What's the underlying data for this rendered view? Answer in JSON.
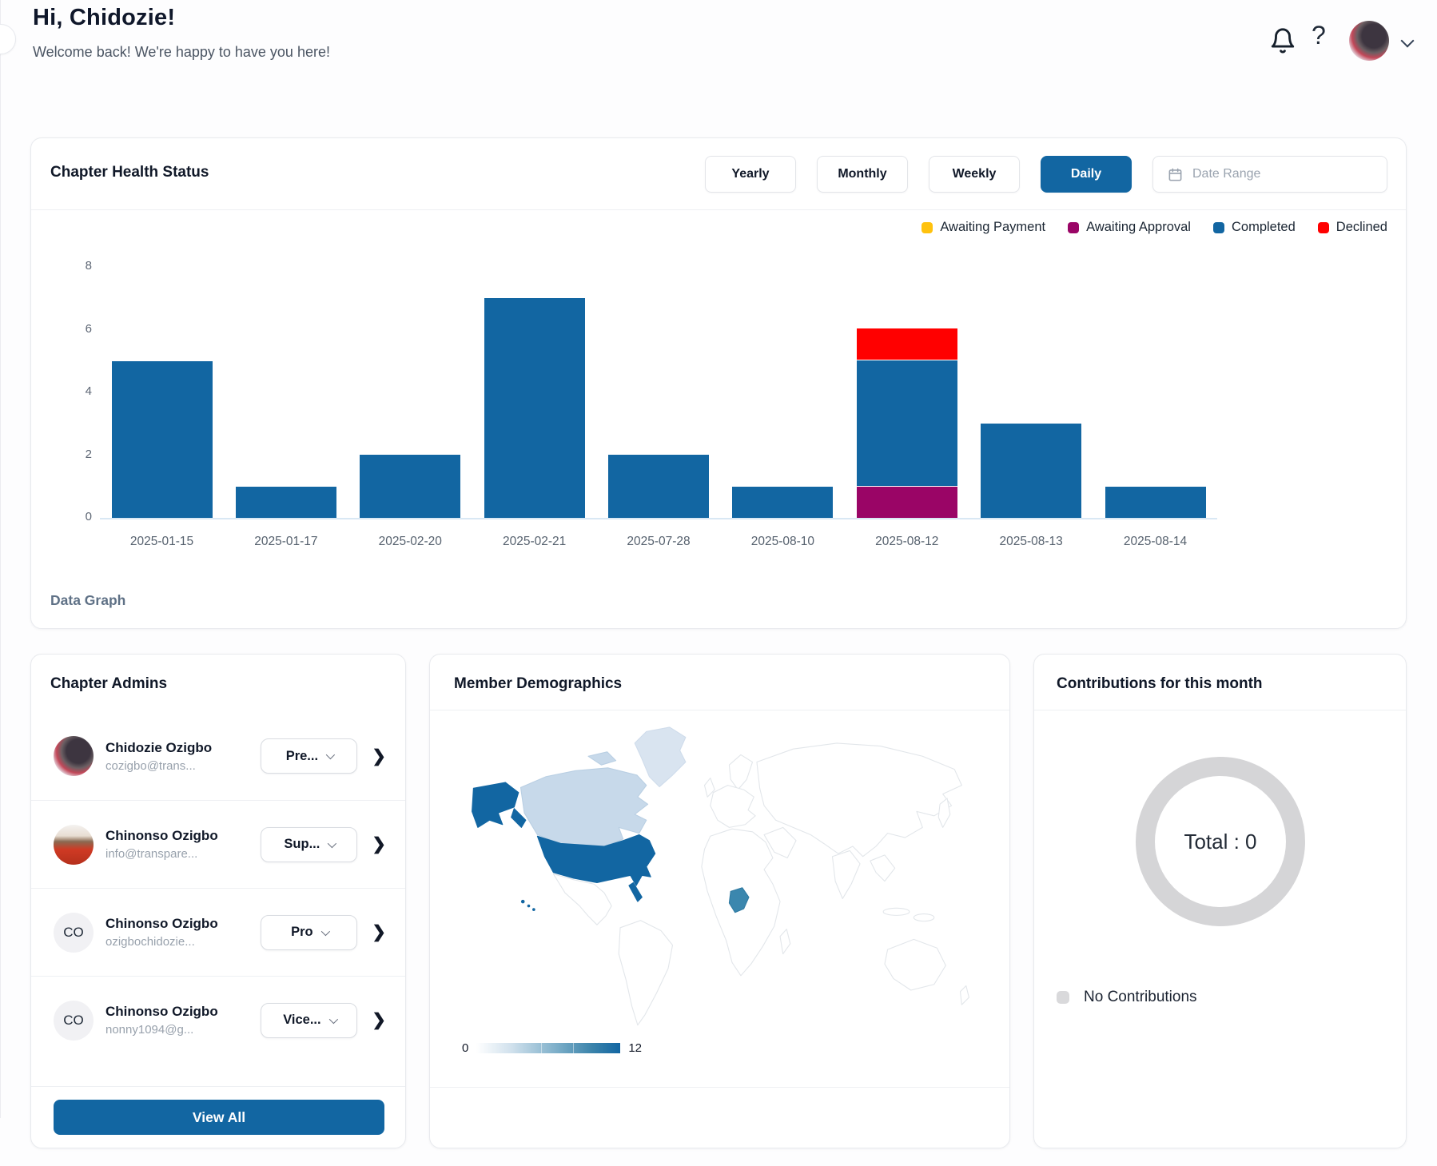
{
  "header": {
    "greeting": "Hi, Chidozie!",
    "subtitle": "Welcome back! We're happy to have you here!"
  },
  "chart_card": {
    "title": "Chapter Health Status",
    "filters": [
      "Yearly",
      "Monthly",
      "Weekly",
      "Daily"
    ],
    "active_filter": "Daily",
    "date_range_placeholder": "Date Range",
    "footer_label": "Data Graph"
  },
  "chart_data": {
    "type": "bar",
    "stacked": true,
    "title": "Chapter Health Status",
    "categories": [
      "2025-01-15",
      "2025-01-17",
      "2025-02-20",
      "2025-02-21",
      "2025-07-28",
      "2025-08-10",
      "2025-08-12",
      "2025-08-13",
      "2025-08-14"
    ],
    "series": [
      {
        "name": "Awaiting Payment",
        "color": "#FFC20E",
        "values": [
          0,
          0,
          0,
          0,
          0,
          0,
          0,
          0,
          0
        ]
      },
      {
        "name": "Awaiting Approval",
        "color": "#9A0566",
        "values": [
          0,
          0,
          0,
          0,
          0,
          0,
          1,
          0,
          0
        ]
      },
      {
        "name": "Completed",
        "color": "#1266A2",
        "values": [
          5,
          1,
          2,
          7,
          2,
          1,
          4,
          3,
          1
        ]
      },
      {
        "name": "Declined",
        "color": "#FF0000",
        "values": [
          0,
          0,
          0,
          0,
          0,
          0,
          1,
          0,
          0
        ]
      }
    ],
    "xlabel": "",
    "ylabel": "",
    "ylim": [
      0,
      8
    ],
    "yticks": [
      0,
      2,
      4,
      6,
      8
    ],
    "grid": false,
    "legend_position": "top-right"
  },
  "admins_card": {
    "title": "Chapter Admins",
    "view_all_label": "View All",
    "admins": [
      {
        "name": "Chidozie Ozigbo",
        "email": "cozigbo@trans...",
        "role": "Pre...",
        "avatar": "photo1",
        "initials": ""
      },
      {
        "name": "Chinonso Ozigbo",
        "email": "info@transpare...",
        "role": "Sup...",
        "avatar": "photo2",
        "initials": ""
      },
      {
        "name": "Chinonso Ozigbo",
        "email": "ozigbochidozie...",
        "role": "Pro",
        "avatar": "initials",
        "initials": "CO"
      },
      {
        "name": "Chinonso Ozigbo",
        "email": "nonny1094@g...",
        "role": "Vice...",
        "avatar": "initials",
        "initials": "CO"
      }
    ]
  },
  "demographics_card": {
    "title": "Member Demographics",
    "scale": {
      "min": "0",
      "max": "12"
    },
    "map_colors": {
      "canada": "#c7d9ea",
      "greenland": "#d9e4f0",
      "usa": "#1266A2",
      "nigeria": "#3b87ae",
      "land": "#ffffff",
      "outline": "#e2e6ea"
    }
  },
  "contributions_card": {
    "title": "Contributions for this month",
    "total_label": "Total : 0",
    "legend_label": "No Contributions"
  },
  "colors": {
    "accent_blue": "#1266A2",
    "awaiting_payment": "#FFC20E",
    "awaiting_approval": "#9A0566",
    "completed": "#1266A2",
    "declined": "#FF0000"
  }
}
